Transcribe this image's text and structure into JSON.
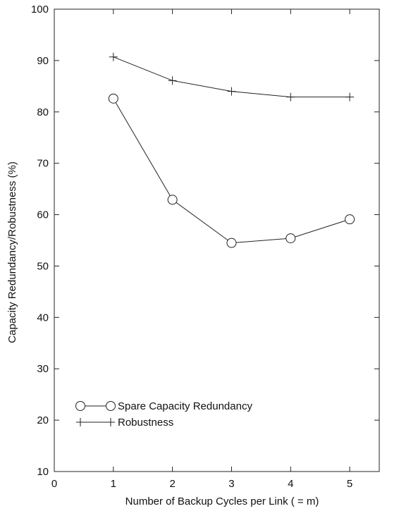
{
  "chart_data": {
    "type": "line",
    "title": "",
    "xlabel": "Number of Backup Cycles per Link ( = m)",
    "ylabel": "Capacity Redundancy/Robustness (%)",
    "xlim": [
      0,
      5.5
    ],
    "ylim": [
      10,
      100
    ],
    "xticks": [
      0,
      1,
      2,
      3,
      4,
      5
    ],
    "yticks": [
      10,
      20,
      30,
      40,
      50,
      60,
      70,
      80,
      90,
      100
    ],
    "grid": false,
    "legend_position": "bottom-left",
    "series": [
      {
        "name": "Spare Capacity Redundancy",
        "marker": "circle",
        "x": [
          1,
          2,
          3,
          4,
          5
        ],
        "y": [
          82.6,
          62.9,
          54.5,
          55.4,
          59.1
        ]
      },
      {
        "name": "Robustness",
        "marker": "plus",
        "x": [
          1,
          2,
          3,
          4,
          5
        ],
        "y": [
          90.7,
          86.1,
          84.0,
          82.9,
          82.9
        ]
      }
    ]
  }
}
